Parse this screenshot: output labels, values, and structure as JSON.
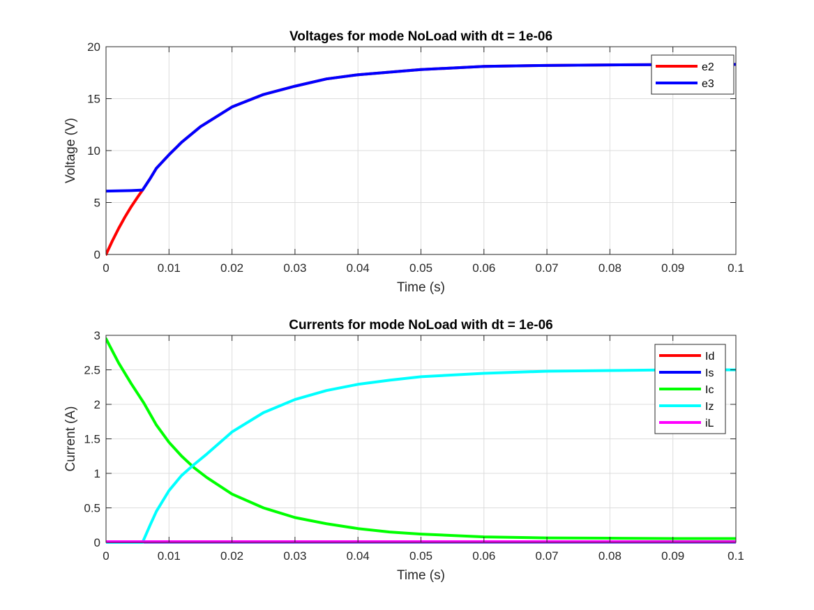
{
  "chart_data": [
    {
      "type": "line",
      "title": "Voltages for mode NoLoad with dt = 1e-06",
      "xlabel": "Time (s)",
      "ylabel": "Voltage (V)",
      "xlim": [
        0,
        0.1
      ],
      "ylim": [
        0,
        20
      ],
      "xticks": [
        0,
        0.01,
        0.02,
        0.03,
        0.04,
        0.05,
        0.06,
        0.07,
        0.08,
        0.09,
        0.1
      ],
      "xtick_labels": [
        "0",
        "0.01",
        "0.02",
        "0.03",
        "0.04",
        "0.05",
        "0.06",
        "0.07",
        "0.08",
        "0.09",
        "0.1"
      ],
      "yticks": [
        0,
        5,
        10,
        15,
        20
      ],
      "ytick_labels": [
        "0",
        "5",
        "10",
        "15",
        "20"
      ],
      "grid": true,
      "legend_position": "top-right",
      "series": [
        {
          "name": "e2",
          "color": "#ff0000",
          "x": [
            0,
            0.001,
            0.002,
            0.003,
            0.004,
            0.005,
            0.0058,
            0.007,
            0.008,
            0.01,
            0.012,
            0.015,
            0.02,
            0.025,
            0.03,
            0.035,
            0.04,
            0.05,
            0.06,
            0.07,
            0.08,
            0.09,
            0.1
          ],
          "y": [
            0,
            1.3,
            2.5,
            3.6,
            4.6,
            5.5,
            6.2,
            7.3,
            8.3,
            9.6,
            10.8,
            12.3,
            14.2,
            15.4,
            16.2,
            16.9,
            17.3,
            17.8,
            18.1,
            18.2,
            18.25,
            18.28,
            18.3
          ]
        },
        {
          "name": "e3",
          "color": "#0000ff",
          "x": [
            0,
            0.002,
            0.004,
            0.0058,
            0.007,
            0.008,
            0.01,
            0.012,
            0.015,
            0.02,
            0.025,
            0.03,
            0.035,
            0.04,
            0.05,
            0.06,
            0.07,
            0.08,
            0.09,
            0.1
          ],
          "y": [
            6.1,
            6.12,
            6.15,
            6.2,
            7.3,
            8.3,
            9.6,
            10.8,
            12.3,
            14.2,
            15.4,
            16.2,
            16.9,
            17.3,
            17.8,
            18.1,
            18.2,
            18.25,
            18.28,
            18.3
          ]
        }
      ]
    },
    {
      "type": "line",
      "title": "Currents for mode NoLoad with dt = 1e-06",
      "xlabel": "Time (s)",
      "ylabel": "Current (A)",
      "xlim": [
        0,
        0.1
      ],
      "ylim": [
        0,
        3
      ],
      "xticks": [
        0,
        0.01,
        0.02,
        0.03,
        0.04,
        0.05,
        0.06,
        0.07,
        0.08,
        0.09,
        0.1
      ],
      "xtick_labels": [
        "0",
        "0.01",
        "0.02",
        "0.03",
        "0.04",
        "0.05",
        "0.06",
        "0.07",
        "0.08",
        "0.09",
        "0.1"
      ],
      "yticks": [
        0,
        0.5,
        1,
        1.5,
        2,
        2.5,
        3
      ],
      "ytick_labels": [
        "0",
        "0.5",
        "1",
        "1.5",
        "2",
        "2.5",
        "3"
      ],
      "grid": true,
      "legend_position": "top-right",
      "series": [
        {
          "name": "Id",
          "color": "#ff0000",
          "x": [
            0,
            0.1
          ],
          "y": [
            0.005,
            0.005
          ]
        },
        {
          "name": "Is",
          "color": "#0000ff",
          "x": [
            0,
            0.003,
            0.0058,
            0.1
          ],
          "y": [
            -0.01,
            -0.005,
            0.005,
            0.005
          ]
        },
        {
          "name": "Ic",
          "color": "#00ff00",
          "x": [
            0,
            0.002,
            0.004,
            0.006,
            0.008,
            0.01,
            0.012,
            0.014,
            0.016,
            0.02,
            0.025,
            0.03,
            0.035,
            0.04,
            0.045,
            0.05,
            0.06,
            0.07,
            0.08,
            0.09,
            0.1
          ],
          "y": [
            2.95,
            2.6,
            2.3,
            2.02,
            1.7,
            1.45,
            1.25,
            1.08,
            0.94,
            0.7,
            0.5,
            0.36,
            0.27,
            0.2,
            0.15,
            0.12,
            0.08,
            0.065,
            0.06,
            0.055,
            0.055
          ]
        },
        {
          "name": "Iz",
          "color": "#00ffff",
          "x": [
            0,
            0.0058,
            0.007,
            0.008,
            0.01,
            0.012,
            0.014,
            0.016,
            0.02,
            0.025,
            0.03,
            0.035,
            0.04,
            0.045,
            0.05,
            0.06,
            0.07,
            0.08,
            0.09,
            0.1
          ],
          "y": [
            0,
            0,
            0.25,
            0.45,
            0.75,
            0.97,
            1.13,
            1.28,
            1.6,
            1.88,
            2.07,
            2.2,
            2.29,
            2.35,
            2.4,
            2.45,
            2.48,
            2.49,
            2.5,
            2.5
          ]
        },
        {
          "name": "iL",
          "color": "#ff00ff",
          "x": [
            0,
            0.1
          ],
          "y": [
            0.01,
            0.01
          ]
        }
      ]
    }
  ]
}
